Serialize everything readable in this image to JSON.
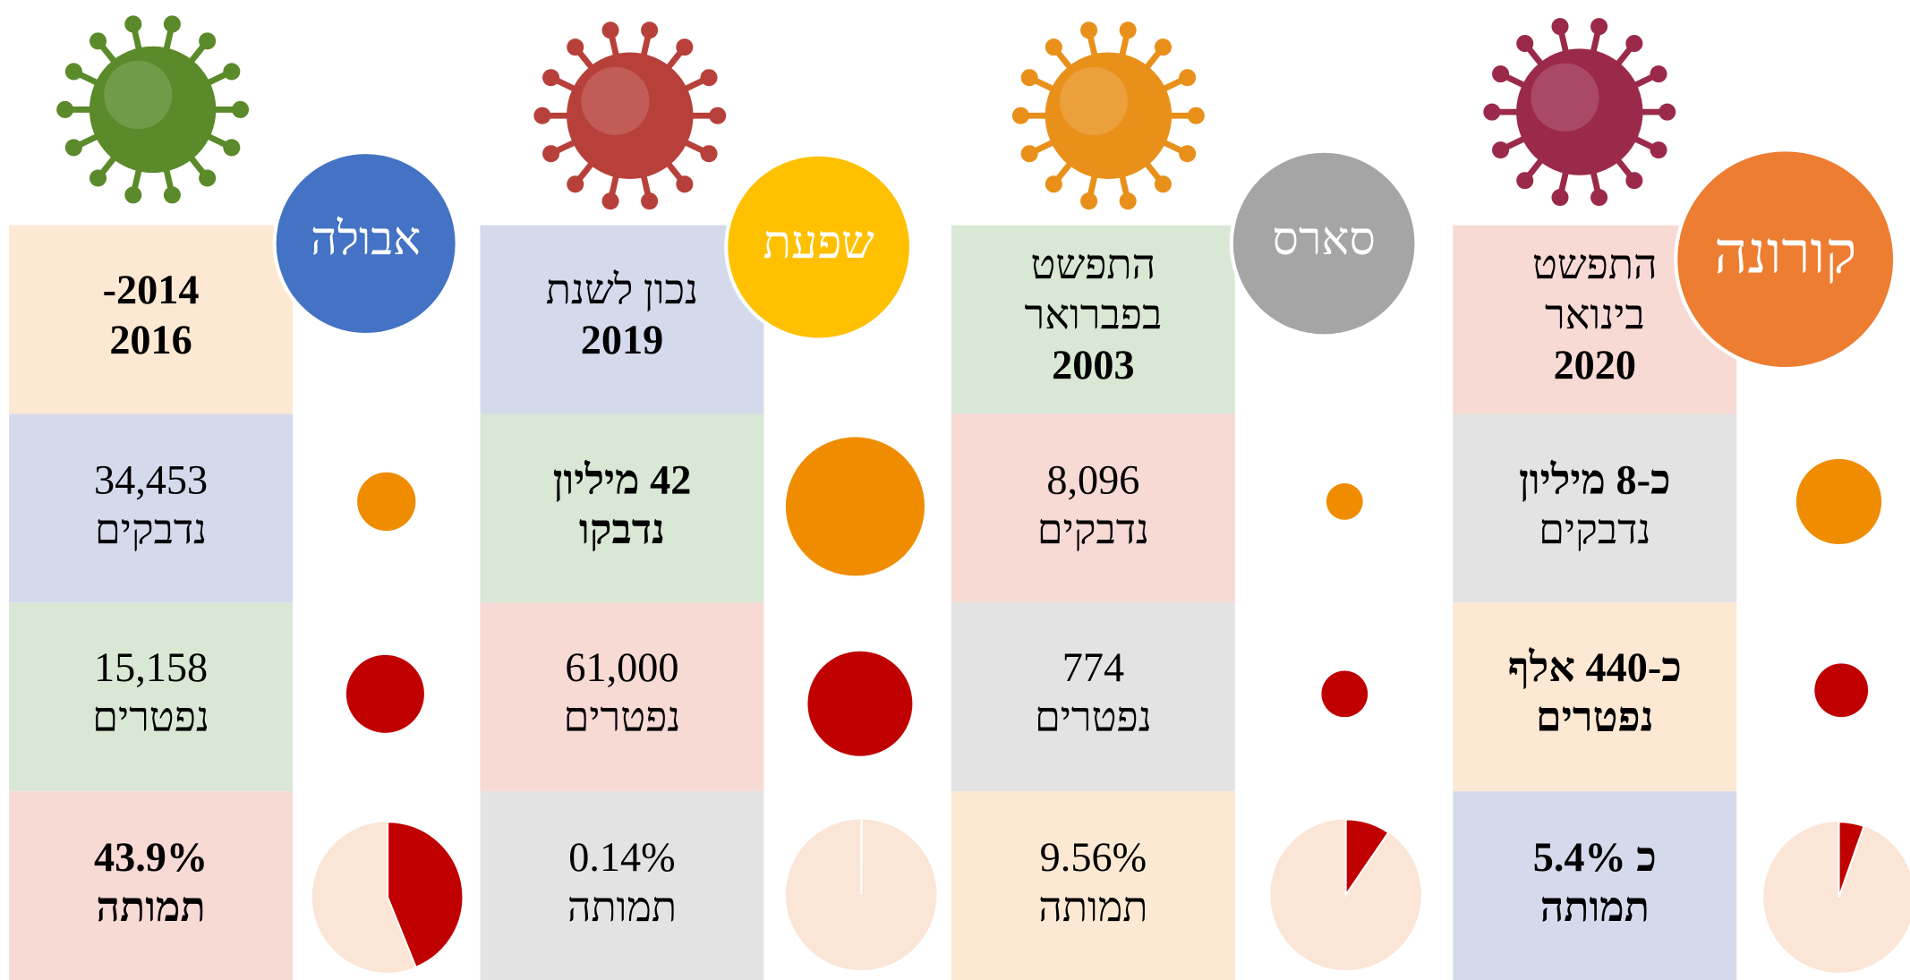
{
  "columns": [
    {
      "name": "קורונה",
      "name_color": "#ed7d31",
      "header": {
        "color": "#f8dad5",
        "lines": [
          {
            "text": "התפשט",
            "bold": false
          },
          {
            "text": "בינואר",
            "bold": false
          },
          {
            "text": "2020",
            "bold": true
          }
        ]
      },
      "cases": {
        "color": "#e3e3e3",
        "lines": [
          {
            "text": "כ-8 מיליון",
            "bold": true
          },
          {
            "text": "נדבקים",
            "bold": false
          }
        ]
      },
      "deaths": {
        "color": "#fde9d3",
        "lines": [
          {
            "text": "כ-440 אלף",
            "bold": true
          },
          {
            "text": "נפטרים",
            "bold": true
          }
        ]
      },
      "mortality": {
        "color": "#d4daeb",
        "rate": 5.4,
        "lines": [
          {
            "text": "כ 5.4%",
            "bold": true
          },
          {
            "text": "תמותה",
            "bold": true
          }
        ]
      }
    },
    {
      "name": "סארס",
      "name_color": "#a5a5a5",
      "header": {
        "color": "#d9e8d4",
        "lines": [
          {
            "text": "התפשט",
            "bold": false
          },
          {
            "text": "בפברואר",
            "bold": false
          },
          {
            "text": "2003",
            "bold": true
          }
        ]
      },
      "cases": {
        "color": "#f8dad5",
        "lines": [
          {
            "text": "8,096",
            "bold": false
          },
          {
            "text": "נדבקים",
            "bold": false
          }
        ]
      },
      "deaths": {
        "color": "#e3e3e3",
        "lines": [
          {
            "text": "774",
            "bold": false
          },
          {
            "text": "נפטרים",
            "bold": false
          }
        ]
      },
      "mortality": {
        "color": "#fde9d3",
        "rate": 9.56,
        "lines": [
          {
            "text": "9.56%",
            "bold": false
          },
          {
            "text": "תמותה",
            "bold": false
          }
        ]
      }
    },
    {
      "name": "שפעת",
      "name_color": "#ffc000",
      "header": {
        "color": "#d4daeb",
        "lines": [
          {
            "text": "נכון לשנת",
            "bold": false
          },
          {
            "text": "2019",
            "bold": true
          }
        ]
      },
      "cases": {
        "color": "#d9e8d4",
        "lines": [
          {
            "text": "42 מיליון",
            "bold": true
          },
          {
            "text": "נדבקו",
            "bold": true
          }
        ]
      },
      "deaths": {
        "color": "#f8dad5",
        "lines": [
          {
            "text": "61,000",
            "bold": false
          },
          {
            "text": "נפטרים",
            "bold": false
          }
        ]
      },
      "mortality": {
        "color": "#e3e3e3",
        "rate": 0.14,
        "lines": [
          {
            "text": "0.14%",
            "bold": false
          },
          {
            "text": "תמותה",
            "bold": false
          }
        ]
      }
    },
    {
      "name": "אבולה",
      "name_color": "#4472c4",
      "header": {
        "color": "#fde9d3",
        "lines": [
          {
            "text": "2014-",
            "bold": true
          },
          {
            "text": "2016",
            "bold": true
          }
        ]
      },
      "cases": {
        "color": "#d4daeb",
        "lines": [
          {
            "text": "34,453",
            "bold": false
          },
          {
            "text": "נדבקים",
            "bold": false
          }
        ]
      },
      "deaths": {
        "color": "#d9e8d4",
        "lines": [
          {
            "text": "15,158",
            "bold": false
          },
          {
            "text": "נפטרים",
            "bold": false
          }
        ]
      },
      "mortality": {
        "color": "#f8dad5",
        "rate": 43.9,
        "lines": [
          {
            "text": "43.9%",
            "bold": true
          },
          {
            "text": "תמותה",
            "bold": true
          }
        ]
      }
    }
  ]
}
